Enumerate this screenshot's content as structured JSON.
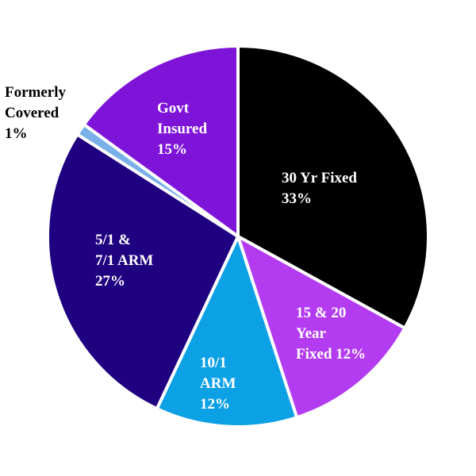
{
  "chart_data": {
    "type": "pie",
    "title": "",
    "legend": "none",
    "slices": [
      {
        "label_lines": [
          "30 Yr Fixed",
          "33%"
        ],
        "value": 33,
        "color": "#000000",
        "label_color": "#ffffff"
      },
      {
        "label_lines": [
          "15 & 20",
          "Year",
          "Fixed 12%"
        ],
        "value": 12,
        "color": "#b43cf0",
        "label_color": "#ffffff"
      },
      {
        "label_lines": [
          "10/1",
          "ARM",
          "12%"
        ],
        "value": 12,
        "color": "#0ca0e4",
        "label_color": "#ffffff"
      },
      {
        "label_lines": [
          "5/1 &",
          "7/1 ARM",
          "27%"
        ],
        "value": 27,
        "color": "#1e0080",
        "label_color": "#ffffff"
      },
      {
        "label_lines": [
          "Formerly",
          "Covered",
          "1%"
        ],
        "value": 1,
        "color": "#7ab0e8",
        "label_color": "#000000"
      },
      {
        "label_lines": [
          "Govt",
          "Insured",
          "15%"
        ],
        "value": 15,
        "color": "#7e14d8",
        "label_color": "#ffffff"
      }
    ]
  }
}
